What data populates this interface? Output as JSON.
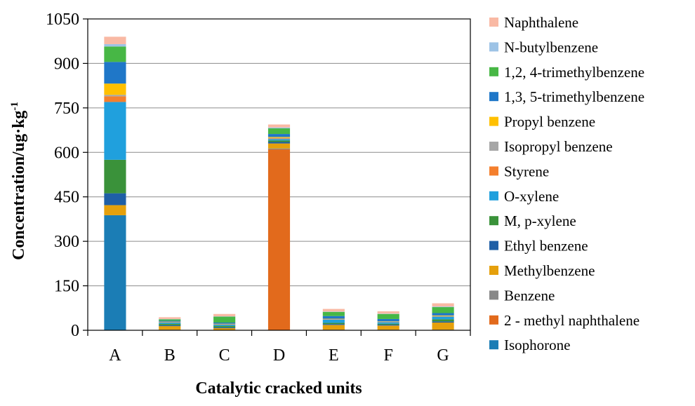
{
  "chart_data": {
    "type": "bar",
    "stacked": true,
    "categories": [
      "A",
      "B",
      "C",
      "D",
      "E",
      "F",
      "G"
    ],
    "xlabel": "Catalytic cracked units",
    "ylabel": "Concentration/ug·kg",
    "ylabel_superscript": "-1",
    "ylim": [
      0,
      1050
    ],
    "yticks": [
      0,
      150,
      300,
      450,
      600,
      750,
      900,
      1050
    ],
    "grid": "horizontal",
    "legend_position": "right",
    "series": [
      {
        "name": "Isophorone",
        "color": "#1B7DB5",
        "values": [
          388,
          0,
          0,
          0,
          0,
          0,
          0
        ]
      },
      {
        "name": "2 - methyl naphthalene",
        "color": "#E26A1C",
        "values": [
          0,
          0,
          0,
          610,
          0,
          0,
          0
        ]
      },
      {
        "name": "Benzene",
        "color": "#888888",
        "values": [
          0,
          2,
          1,
          3,
          2,
          2,
          2
        ]
      },
      {
        "name": "Methylbenzene",
        "color": "#E5A00C",
        "values": [
          34,
          12,
          6,
          17,
          16,
          14,
          24
        ]
      },
      {
        "name": "Ethyl benzene",
        "color": "#1F5FA6",
        "values": [
          40,
          3,
          3,
          5,
          3,
          3,
          4
        ]
      },
      {
        "name": "M, p-xylene",
        "color": "#3A923A",
        "values": [
          113,
          5,
          5,
          5,
          4,
          3,
          7
        ]
      },
      {
        "name": "O-xylene",
        "color": "#20A0DD",
        "values": [
          195,
          4,
          4,
          5,
          11,
          5,
          9
        ]
      },
      {
        "name": "Styrene",
        "color": "#F47F2D",
        "values": [
          19,
          1,
          1,
          2,
          1,
          1,
          1
        ]
      },
      {
        "name": "Isopropyl benzene",
        "color": "#A6A6A6",
        "values": [
          5,
          1,
          1,
          2,
          1,
          1,
          1
        ]
      },
      {
        "name": "Propyl benzene",
        "color": "#FFC000",
        "values": [
          38,
          1,
          1,
          3,
          1,
          1,
          2
        ]
      },
      {
        "name": "1,3, 5-trimethylbenzene",
        "color": "#1F77C8",
        "values": [
          73,
          3,
          4,
          10,
          9,
          8,
          8
        ]
      },
      {
        "name": "1,2, 4-trimethylbenzene",
        "color": "#47B745",
        "values": [
          52,
          5,
          20,
          19,
          14,
          17,
          20
        ]
      },
      {
        "name": "N-butylbenzene",
        "color": "#9DC3E6",
        "values": [
          8,
          1,
          1,
          3,
          1,
          1,
          2
        ]
      },
      {
        "name": "Naphthalene",
        "color": "#F9B9A4",
        "values": [
          25,
          6,
          8,
          10,
          9,
          8,
          11
        ]
      }
    ]
  }
}
